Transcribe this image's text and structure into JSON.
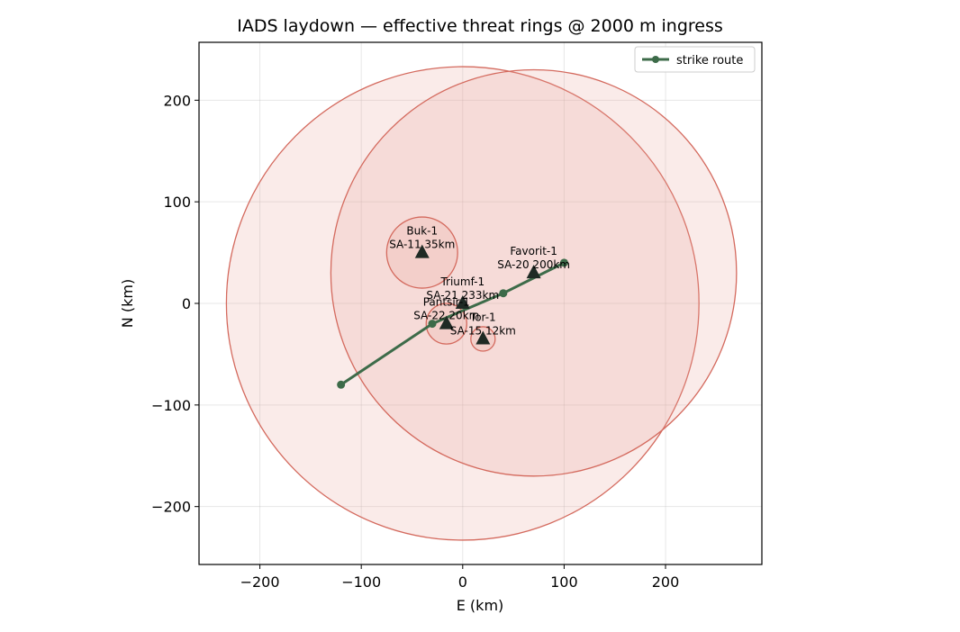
{
  "chart_data": {
    "type": "scatter",
    "title": "IADS laydown — effective threat rings @ 2000 m ingress",
    "xlabel": "E (km)",
    "ylabel": "N (km)",
    "xlim": [
      -260,
      295
    ],
    "ylim": [
      -257,
      257
    ],
    "xticks": [
      -200,
      -100,
      0,
      100,
      200
    ],
    "yticks": [
      -200,
      -100,
      0,
      100,
      200
    ],
    "tick_labels": {
      "x": [
        "−200",
        "−100",
        "0",
        "100",
        "200"
      ],
      "y": [
        "−200",
        "−100",
        "0",
        "100",
        "200"
      ]
    },
    "grid": true,
    "legend": {
      "position": "top-right",
      "entries": [
        "strike route"
      ]
    },
    "colors": {
      "ring_fill": "#e8a39a",
      "ring_stroke": "#d46a5e",
      "site_marker": "#1f2a24",
      "route": "#3d6b49"
    },
    "sites": [
      {
        "name": "Triumf-1",
        "label": "SA-21 233km",
        "x": 0,
        "y": 0,
        "range_km": 233
      },
      {
        "name": "Favorit-1",
        "label": "SA-20 200km",
        "x": 70,
        "y": 30,
        "range_km": 200
      },
      {
        "name": "Buk-1",
        "label": "SA-11 35km",
        "x": -40,
        "y": 50,
        "range_km": 35
      },
      {
        "name": "Pantsir-1",
        "label": "SA-22 20km",
        "x": -16,
        "y": -20,
        "range_km": 20
      },
      {
        "name": "Tor-1",
        "label": "SA-15 12km",
        "x": 20,
        "y": -35,
        "range_km": 12
      }
    ],
    "series": [
      {
        "name": "strike route",
        "x": [
          -120,
          -30,
          40,
          100
        ],
        "y": [
          -80,
          -20,
          10,
          40
        ]
      }
    ]
  }
}
